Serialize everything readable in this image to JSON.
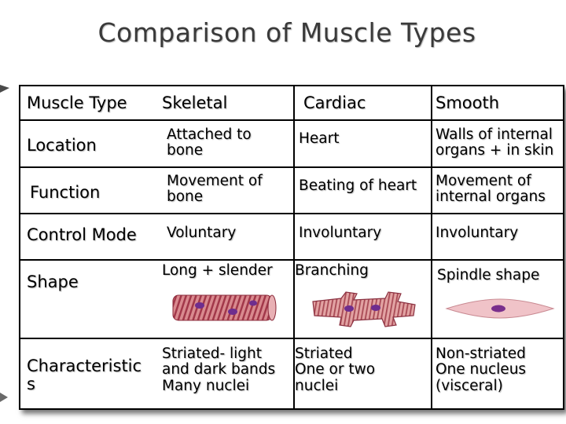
{
  "title": "Comparison of Muscle Types",
  "header": {
    "col0": "Muscle Type",
    "col1": "Skeletal",
    "col2": "Cardiac",
    "col3": "Smooth"
  },
  "rows": {
    "location": {
      "label": "Location",
      "skeletal": [
        "Attached to",
        "bone"
      ],
      "cardiac": "Heart",
      "smooth": [
        "Walls of internal",
        "organs + in skin"
      ]
    },
    "function": {
      "label": "Function",
      "skeletal": [
        "Movement of",
        "bone"
      ],
      "cardiac": "Beating of heart",
      "smooth": [
        "Movement of",
        "internal organs"
      ]
    },
    "control": {
      "label": "Control Mode",
      "skeletal": "Voluntary",
      "cardiac": "Involuntary",
      "smooth": "Involuntary"
    },
    "shape": {
      "label": "Shape",
      "skeletal": "Long + slender",
      "cardiac": "Branching",
      "smooth": "Spindle shape"
    },
    "characteristics": {
      "label": [
        "Characteristic",
        "s"
      ],
      "skeletal": [
        "Striated- light",
        "and dark bands",
        "Many nuclei"
      ],
      "cardiac": [
        "Striated",
        "One or two",
        "nuclei"
      ],
      "smooth": [
        "Non-striated",
        "One nucleus",
        "(visceral)"
      ]
    }
  },
  "colors": {
    "muscle_fill": "#d88a8a",
    "muscle_stripe": "#a23c4a",
    "nucleus": "#7a2b8f"
  }
}
